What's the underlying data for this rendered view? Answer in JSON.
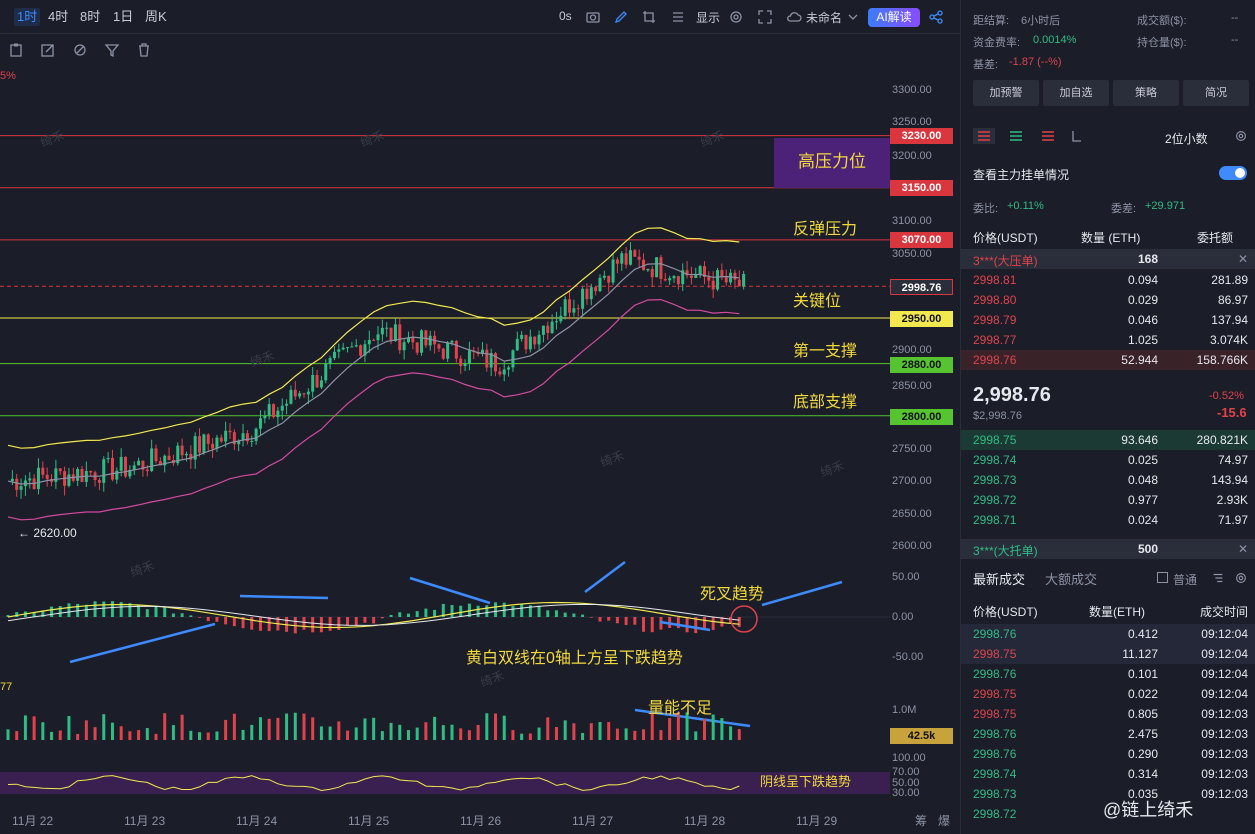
{
  "toolbar": {
    "timeframes": [
      "1时",
      "4时",
      "8时",
      "1日",
      "周K"
    ],
    "active_timeframe": "1时",
    "countdown": "0s",
    "display_label": "显示",
    "layout_name": "未命名",
    "ai_label": "AI解读"
  },
  "chart": {
    "price_ticks": [
      "3300.00",
      "3250.00",
      "3200.00",
      "3100.00",
      "3050.00",
      "2900.00",
      "2850.00",
      "2750.00",
      "2700.00",
      "2650.00",
      "2600.00"
    ],
    "level_tags": {
      "r1": "3230.00",
      "r2": "3150.00",
      "r3": "3070.00",
      "current": "2998.76",
      "s1": "2950.00",
      "s2": "2880.00",
      "s3": "2800.00"
    },
    "low_marker": "← 2620.00",
    "top_left_fragment": "5%",
    "annotations": {
      "high_resistance": "高压力位",
      "rebound_resistance": "反弹压力",
      "key_level": "关键位",
      "first_support": "第一支撑",
      "bottom_support": "底部支撑",
      "death_cross": "死叉趋势",
      "macd_note": "黄白双线在0轴上方呈下跌趋势",
      "volume_note": "量能不足",
      "rsi_note": "阴线呈下跌趋势"
    },
    "macd_ticks": [
      "50.00",
      "0.00",
      "-50.00"
    ],
    "macd_left_fragment": "77",
    "volume_ticks": [
      "1.0M"
    ],
    "volume_tag": "42.5k",
    "rsi_ticks": [
      "100.00",
      "70.00",
      "50.00",
      "30.00"
    ],
    "dates": [
      "11月 22",
      "11月 23",
      "11月 24",
      "11月 25",
      "11月 26",
      "11月 27",
      "11月 28",
      "11月 29"
    ],
    "bottom_right_labels": [
      "筹",
      "爆"
    ],
    "watermark": "绮禾"
  },
  "chart_data": {
    "type": "candlestick",
    "symbol_interval": "1时",
    "x": [
      "11月 22",
      "11月 23",
      "11月 24",
      "11月 25",
      "11月 26",
      "11月 27",
      "11月 28"
    ],
    "approx_close": [
      2700,
      2720,
      2780,
      2930,
      2880,
      3040,
      2998.76
    ],
    "horizontal_levels": [
      3230,
      3150,
      3070,
      2998.76,
      2950,
      2880,
      2800
    ],
    "ylim": [
      2600,
      3300
    ],
    "indicators": [
      "BOLL",
      "MACD",
      "VOL",
      "RSI"
    ]
  },
  "side": {
    "funding_countdown_label": "距结算:",
    "funding_countdown_value": "6小时后",
    "funding_rate_label": "资金费率:",
    "funding_rate_value": "0.0014%",
    "basis_label": "基差:",
    "basis_value": "-1.87 (--%)",
    "volume_label": "成交额($):",
    "volume_value": "--",
    "oi_label": "持仓量($):",
    "oi_value": "--",
    "buttons": [
      "加预警",
      "加自选",
      "策略",
      "简况"
    ],
    "decimals": "2位小数",
    "whale_orders_label": "查看主力挂单情况",
    "ratio_label": "委比:",
    "ratio_value": "+0.11%",
    "diff_label": "委差:",
    "diff_value": "+29.971",
    "col_price": "价格(USDT)",
    "col_qty": "数量 (ETH)",
    "col_total": "委托额",
    "big_ask_label": "3***(大压单)",
    "big_ask_qty": "168",
    "asks": [
      {
        "price": "2998.81",
        "qty": "0.094",
        "total": "281.89"
      },
      {
        "price": "2998.80",
        "qty": "0.029",
        "total": "86.97"
      },
      {
        "price": "2998.79",
        "qty": "0.046",
        "total": "137.94"
      },
      {
        "price": "2998.77",
        "qty": "1.025",
        "total": "3.074K"
      },
      {
        "price": "2998.76",
        "qty": "52.944",
        "total": "158.766K"
      }
    ],
    "last_price": "2,998.76",
    "last_price_usd": "$2,998.76",
    "change_pct": "-0.52%",
    "change_abs": "-15.6",
    "bids": [
      {
        "price": "2998.75",
        "qty": "93.646",
        "total": "280.821K"
      },
      {
        "price": "2998.74",
        "qty": "0.025",
        "total": "74.97"
      },
      {
        "price": "2998.73",
        "qty": "0.048",
        "total": "143.94"
      },
      {
        "price": "2998.72",
        "qty": "0.977",
        "total": "2.93K"
      },
      {
        "price": "2998.71",
        "qty": "0.024",
        "total": "71.97"
      }
    ],
    "big_bid_label": "3***(大托单)",
    "big_bid_qty": "500",
    "trades_tab": "最新成交",
    "big_trades_tab": "大额成交",
    "normal_label": "普通",
    "trade_col_price": "价格(USDT)",
    "trade_col_qty": "数量(ETH)",
    "trade_col_time": "成交时间",
    "trades": [
      {
        "price": "2998.76",
        "qty": "0.412",
        "time": "09:12:04",
        "side": "buy"
      },
      {
        "price": "2998.75",
        "qty": "11.127",
        "time": "09:12:04",
        "side": "sell"
      },
      {
        "price": "2998.76",
        "qty": "0.101",
        "time": "09:12:04",
        "side": "buy"
      },
      {
        "price": "2998.75",
        "qty": "0.022",
        "time": "09:12:04",
        "side": "sell"
      },
      {
        "price": "2998.75",
        "qty": "0.805",
        "time": "09:12:03",
        "side": "sell"
      },
      {
        "price": "2998.76",
        "qty": "2.475",
        "time": "09:12:03",
        "side": "buy"
      },
      {
        "price": "2998.76",
        "qty": "0.290",
        "time": "09:12:03",
        "side": "buy"
      },
      {
        "price": "2998.74",
        "qty": "0.314",
        "time": "09:12:03",
        "side": "buy"
      },
      {
        "price": "2998.73",
        "qty": "0.035",
        "time": "09:12:03",
        "side": "buy"
      },
      {
        "price": "2998.72",
        "qty": "",
        "time": "",
        "side": "buy"
      }
    ],
    "brand": "@链上绮禾"
  }
}
